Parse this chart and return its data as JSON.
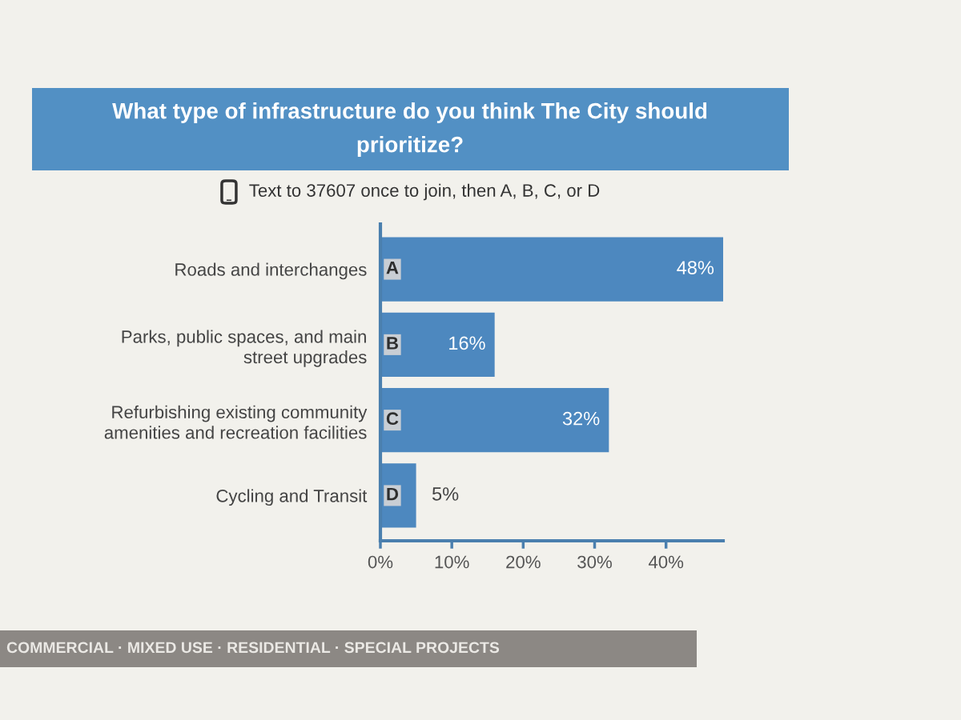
{
  "chart_data": {
    "type": "bar",
    "orientation": "horizontal",
    "title": "What type of infrastructure do you think The City should\nprioritize?",
    "subtitle": "Text to 37607 once to join, then A, B, C, or D",
    "categories": [
      "Roads and interchanges",
      "Parks, public spaces, and main\nstreet upgrades",
      "Refurbishing existing community\namenities and recreation facilities",
      "Cycling and Transit"
    ],
    "values": [
      48,
      16,
      32,
      5
    ],
    "color": "#4d88bf",
    "value_labels": [
      "48%",
      "16%",
      "32%",
      "5%"
    ],
    "xlim": [
      0,
      48
    ],
    "xticks": [
      {
        "value": 0,
        "label": "0%"
      },
      {
        "value": 10,
        "label": "10%"
      },
      {
        "value": 20,
        "label": "20%"
      },
      {
        "value": 30,
        "label": "30%"
      },
      {
        "value": 40,
        "label": "40%"
      }
    ],
    "annotations": [
      {
        "text": "A",
        "y": "Roads and interchanges"
      },
      {
        "text": "B",
        "y": "Parks, public spaces, and main\nstreet upgrades"
      },
      {
        "text": "C",
        "y": "Refurbishing existing community\namenities and recreation facilities"
      },
      {
        "text": "D",
        "y": "Cycling and Transit"
      },
      "COMMERCIAL · MIXED USE · RESIDENTIAL · SPECIAL PROJECTS"
    ]
  }
}
